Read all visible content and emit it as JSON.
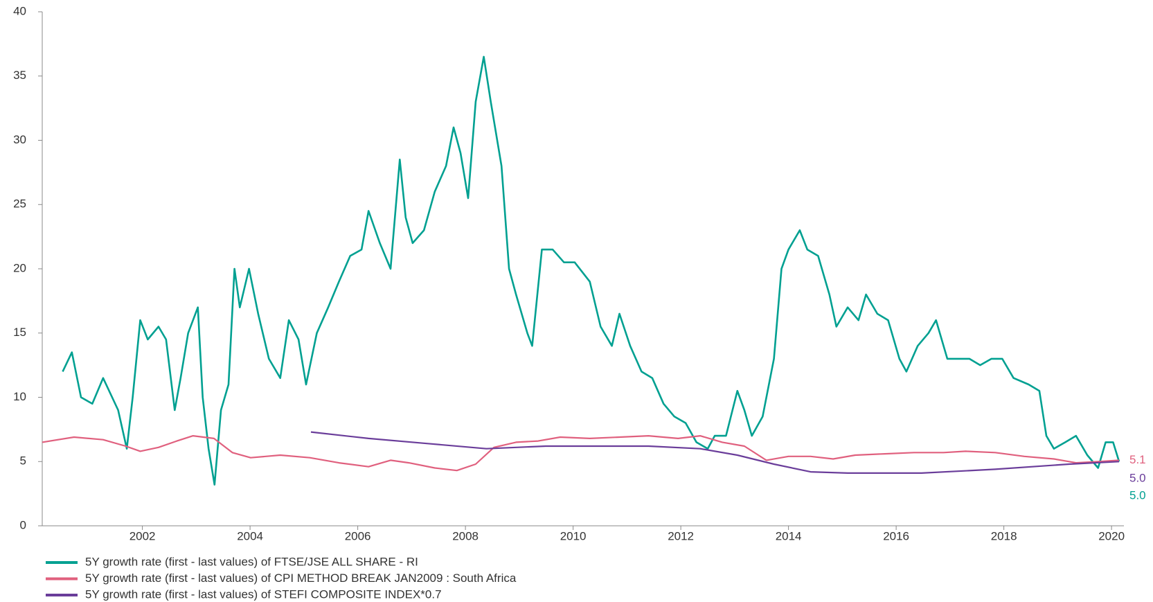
{
  "chart_data": {
    "type": "line",
    "xlim": [
      2000.14,
      2020.23
    ],
    "ylim": [
      0,
      40
    ],
    "xticks": [
      2002,
      2004,
      2006,
      2008,
      2010,
      2012,
      2014,
      2016,
      2018,
      2020
    ],
    "yticks": [
      0,
      5,
      10,
      15,
      20,
      25,
      30,
      35,
      40
    ],
    "legend": "bottom-left",
    "series": [
      {
        "name": "5Y growth rate (first - last values) of FTSE/JSE ALL SHARE - RI",
        "color": "#00a091",
        "x": [
          2000.52,
          2000.69,
          2000.86,
          2001.07,
          2001.27,
          2001.55,
          2001.71,
          2001.82,
          2001.96,
          2002.1,
          2002.3,
          2002.44,
          2002.6,
          2002.71,
          2002.85,
          2003.03,
          2003.12,
          2003.23,
          2003.34,
          2003.46,
          2003.6,
          2003.71,
          2003.81,
          2003.98,
          2004.15,
          2004.35,
          2004.56,
          2004.72,
          2004.9,
          2005.04,
          2005.24,
          2005.45,
          2005.65,
          2005.86,
          2006.07,
          2006.2,
          2006.41,
          2006.61,
          2006.78,
          2006.89,
          2007.02,
          2007.23,
          2007.43,
          2007.64,
          2007.78,
          2007.91,
          2008.05,
          2008.19,
          2008.34,
          2008.47,
          2008.67,
          2008.81,
          2008.94,
          2009.15,
          2009.24,
          2009.42,
          2009.62,
          2009.83,
          2010.03,
          2010.31,
          2010.51,
          2010.72,
          2010.86,
          2011.06,
          2011.27,
          2011.47,
          2011.68,
          2011.88,
          2012.09,
          2012.29,
          2012.5,
          2012.63,
          2012.84,
          2013.05,
          2013.18,
          2013.32,
          2013.52,
          2013.73,
          2013.87,
          2014.0,
          2014.21,
          2014.35,
          2014.55,
          2014.76,
          2014.89,
          2015.1,
          2015.3,
          2015.44,
          2015.65,
          2015.85,
          2016.06,
          2016.19,
          2016.4,
          2016.6,
          2016.74,
          2016.95,
          2017.15,
          2017.36,
          2017.56,
          2017.77,
          2017.97,
          2018.18,
          2018.46,
          2018.66,
          2018.79,
          2018.93,
          2019.14,
          2019.34,
          2019.55,
          2019.75,
          2019.89,
          2020.03,
          2020.14
        ],
        "values": [
          12,
          13.5,
          10,
          9.5,
          11.5,
          9,
          6,
          10,
          16,
          14.5,
          15.5,
          14.5,
          9,
          11.5,
          15,
          17,
          10,
          6,
          3.2,
          9,
          11,
          20,
          17,
          20,
          16.5,
          13,
          11.5,
          16,
          14.5,
          11,
          15,
          17,
          19,
          21,
          21.5,
          24.5,
          22,
          20,
          28.5,
          24,
          22,
          23,
          26,
          28,
          31,
          29,
          25.5,
          33,
          36.5,
          33,
          28,
          20,
          18,
          15,
          14,
          21.5,
          21.5,
          20.5,
          20.5,
          19,
          15.5,
          14,
          16.5,
          14,
          12,
          11.5,
          9.5,
          8.5,
          8,
          6.5,
          6,
          7,
          7,
          10.5,
          9,
          7,
          8.5,
          13,
          20,
          21.5,
          23,
          21.5,
          21,
          18,
          15.5,
          17,
          16,
          18,
          16.5,
          16,
          13,
          12,
          14,
          15,
          16,
          13,
          13,
          13,
          12.5,
          13,
          13,
          11.5,
          11,
          10.5,
          7,
          6,
          6.5,
          7,
          5.5,
          4.5,
          6.5,
          6.5,
          5.0
        ]
      },
      {
        "name": "5Y growth rate (first - last values) of CPI METHOD BREAK JAN2009 : South Africa",
        "color": "#e0607e",
        "x": [
          2000.14,
          2000.73,
          2001.27,
          2001.69,
          2001.96,
          2002.3,
          2002.64,
          2002.94,
          2003.33,
          2003.67,
          2004.01,
          2004.56,
          2005.11,
          2005.65,
          2006.2,
          2006.61,
          2006.95,
          2007.43,
          2007.84,
          2008.19,
          2008.53,
          2008.94,
          2009.35,
          2009.76,
          2010.31,
          2010.86,
          2011.4,
          2011.95,
          2012.36,
          2012.77,
          2013.18,
          2013.59,
          2014.0,
          2014.41,
          2014.83,
          2015.24,
          2015.79,
          2016.33,
          2016.88,
          2017.29,
          2017.84,
          2018.38,
          2018.93,
          2019.34,
          2019.75,
          2020.14
        ],
        "values": [
          6.5,
          6.9,
          6.7,
          6.2,
          5.8,
          6.1,
          6.6,
          7,
          6.8,
          5.7,
          5.3,
          5.5,
          5.3,
          4.9,
          4.6,
          5.1,
          4.9,
          4.5,
          4.3,
          4.8,
          6.1,
          6.5,
          6.6,
          6.9,
          6.8,
          6.9,
          7,
          6.8,
          7,
          6.5,
          6.2,
          5.1,
          5.4,
          5.4,
          5.2,
          5.5,
          5.6,
          5.7,
          5.7,
          5.8,
          5.7,
          5.4,
          5.2,
          4.9,
          5.0,
          5.1
        ]
      },
      {
        "name": "5Y growth rate (first - last values) of STEFI COMPOSITE INDEX*0.7",
        "color": "#6a3d9a",
        "x": [
          2005.13,
          2006.2,
          2007.3,
          2008.39,
          2009.49,
          2011.4,
          2012.36,
          2013.05,
          2013.73,
          2014.41,
          2015.1,
          2016.47,
          2017.84,
          2019.21,
          2020.14
        ],
        "values": [
          7.3,
          6.8,
          6.4,
          6.0,
          6.2,
          6.2,
          6.0,
          5.5,
          4.8,
          4.2,
          4.1,
          4.1,
          4.4,
          4.8,
          5.0
        ]
      }
    ],
    "annotations": [
      {
        "text": "5.1",
        "value": 5.1,
        "color": "#e0607e"
      },
      {
        "text": "5.0",
        "value": 5.0,
        "color": "#6a3d9a"
      },
      {
        "text": "5.0",
        "value": 5.0,
        "color": "#00a091"
      }
    ]
  }
}
